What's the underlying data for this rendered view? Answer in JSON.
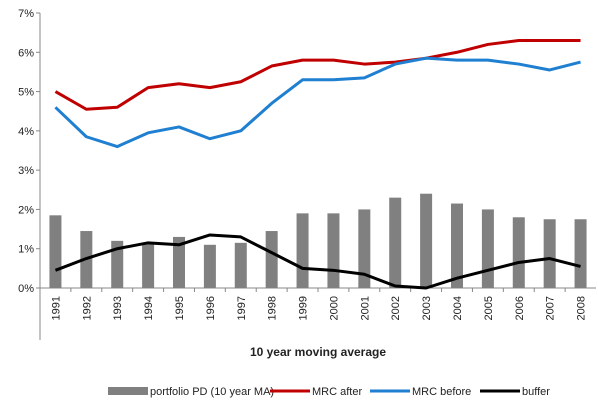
{
  "chart_data": {
    "type": "bar-line",
    "x_label": "10 year moving average",
    "categories": [
      "1991",
      "1992",
      "1993",
      "1994",
      "1995",
      "1996",
      "1997",
      "1998",
      "1999",
      "2000",
      "2001",
      "2002",
      "2003",
      "2004",
      "2005",
      "2006",
      "2007",
      "2008"
    ],
    "ylim": [
      0,
      7
    ],
    "yticks": [
      {
        "value": 0,
        "label": "0%"
      },
      {
        "value": 1,
        "label": "1%"
      },
      {
        "value": 2,
        "label": "2%"
      },
      {
        "value": 3,
        "label": "3%"
      },
      {
        "value": 4,
        "label": "4%"
      },
      {
        "value": 5,
        "label": "5%"
      },
      {
        "value": 6,
        "label": "6%"
      },
      {
        "value": 7,
        "label": "7%"
      }
    ],
    "series": [
      {
        "name": "portfolio PD (10 year MA)",
        "kind": "bar",
        "color": "#808080",
        "values": [
          1.85,
          1.45,
          1.2,
          1.15,
          1.3,
          1.1,
          1.15,
          1.45,
          1.9,
          1.9,
          2.0,
          2.3,
          2.4,
          2.15,
          2.0,
          1.8,
          1.75,
          1.75
        ]
      },
      {
        "name": "MRC after",
        "kind": "line",
        "color": "#c00000",
        "values": [
          5.0,
          4.55,
          4.6,
          5.1,
          5.2,
          5.1,
          5.25,
          5.65,
          5.8,
          5.8,
          5.7,
          5.75,
          5.85,
          6.0,
          6.2,
          6.3,
          6.3,
          6.3
        ]
      },
      {
        "name": "MRC before",
        "kind": "line",
        "color": "#1f7fd0",
        "values": [
          4.6,
          3.85,
          3.6,
          3.95,
          4.1,
          3.8,
          4.0,
          4.7,
          5.3,
          5.3,
          5.35,
          5.7,
          5.85,
          5.8,
          5.8,
          5.7,
          5.55,
          5.75
        ]
      },
      {
        "name": "buffer",
        "kind": "line",
        "color": "#000000",
        "values": [
          0.45,
          0.75,
          1.0,
          1.15,
          1.1,
          1.35,
          1.3,
          0.9,
          0.5,
          0.45,
          0.35,
          0.05,
          0.0,
          0.25,
          0.45,
          0.65,
          0.75,
          0.55
        ]
      }
    ]
  }
}
